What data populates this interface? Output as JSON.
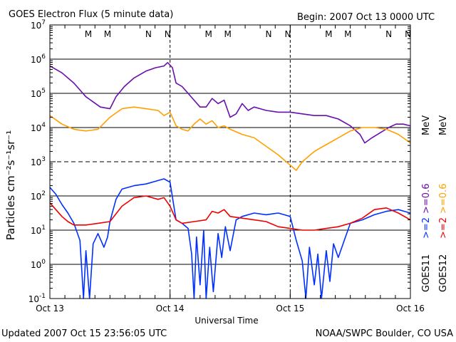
{
  "header": {
    "title": "GOES Electron Flux (5 minute data)",
    "begin": "Begin: 2007 Oct 13 0000 UTC"
  },
  "footer": {
    "updated": "Updated 2007 Oct 15 23:56:05 UTC",
    "credit": "NOAA/SWPC Boulder, CO USA"
  },
  "markers": [
    {
      "label": "M",
      "day": 13.32,
      "color": "#e00000"
    },
    {
      "label": "M",
      "day": 13.48,
      "color": "#0020e0"
    },
    {
      "label": "N",
      "day": 13.82,
      "color": "#e00000"
    },
    {
      "label": "N",
      "day": 13.98,
      "color": "#0020e0"
    },
    {
      "label": "M",
      "day": 14.32,
      "color": "#e00000"
    },
    {
      "label": "M",
      "day": 14.48,
      "color": "#0020e0"
    },
    {
      "label": "N",
      "day": 14.82,
      "color": "#e00000"
    },
    {
      "label": "N",
      "day": 14.98,
      "color": "#0020e0"
    },
    {
      "label": "M",
      "day": 15.32,
      "color": "#e00000"
    },
    {
      "label": "M",
      "day": 15.48,
      "color": "#0020e0"
    },
    {
      "label": "N",
      "day": 15.82,
      "color": "#e00000"
    },
    {
      "label": "N",
      "day": 15.98,
      "color": "#0020e0"
    }
  ],
  "chart_data": {
    "type": "line",
    "xlabel": "Universal Time",
    "ylabel": "Particles cm⁻²s⁻¹sr⁻¹",
    "x_ticks": [
      {
        "day": 13,
        "label": "Oct 13"
      },
      {
        "day": 14,
        "label": "Oct 14"
      },
      {
        "day": 15,
        "label": "Oct 15"
      },
      {
        "day": 16,
        "label": "Oct 16"
      }
    ],
    "xlim": [
      13,
      16
    ],
    "ylim_log10": [
      -1,
      7
    ],
    "y_scale": "log",
    "y_ticks": [
      {
        "exp": 7,
        "base": "10",
        "sup": "7"
      },
      {
        "exp": 6,
        "base": "10",
        "sup": "6"
      },
      {
        "exp": 5,
        "base": "10",
        "sup": "5"
      },
      {
        "exp": 4,
        "base": "10",
        "sup": "4"
      },
      {
        "exp": 3,
        "base": "10",
        "sup": "3"
      },
      {
        "exp": 2,
        "base": "10",
        "sup": "2"
      },
      {
        "exp": 1,
        "base": "10",
        "sup": "1"
      },
      {
        "exp": 0,
        "base": "10",
        "sup": "0"
      },
      {
        "exp": -1,
        "base": "10",
        "sup": "-1"
      }
    ],
    "threshold_line_exp": 3,
    "legend": {
      "goes11": {
        "label": "GOES11",
        "lo": ">=2",
        "hi": ">=0.6",
        "unit": "MeV"
      },
      "goes12": {
        "label": "GOES12",
        "lo": ">=2",
        "hi": ">=0.6",
        "unit": "MeV"
      }
    },
    "series": [
      {
        "name": "GOES11 >=0.6 MeV",
        "color": "#6a0dad",
        "points": [
          [
            13.0,
            5.8
          ],
          [
            13.1,
            5.6
          ],
          [
            13.2,
            5.3
          ],
          [
            13.3,
            4.9
          ],
          [
            13.42,
            4.6
          ],
          [
            13.5,
            4.55
          ],
          [
            13.55,
            4.9
          ],
          [
            13.62,
            5.2
          ],
          [
            13.7,
            5.45
          ],
          [
            13.8,
            5.65
          ],
          [
            13.88,
            5.75
          ],
          [
            13.95,
            5.8
          ],
          [
            13.98,
            5.9
          ],
          [
            14.02,
            5.75
          ],
          [
            14.05,
            5.3
          ],
          [
            14.1,
            5.2
          ],
          [
            14.15,
            5.0
          ],
          [
            14.2,
            4.8
          ],
          [
            14.25,
            4.6
          ],
          [
            14.3,
            4.6
          ],
          [
            14.35,
            4.85
          ],
          [
            14.4,
            4.7
          ],
          [
            14.45,
            4.8
          ],
          [
            14.5,
            4.3
          ],
          [
            14.55,
            4.4
          ],
          [
            14.6,
            4.7
          ],
          [
            14.65,
            4.5
          ],
          [
            14.7,
            4.6
          ],
          [
            14.75,
            4.55
          ],
          [
            14.8,
            4.5
          ],
          [
            14.9,
            4.45
          ],
          [
            15.0,
            4.45
          ],
          [
            15.1,
            4.4
          ],
          [
            15.2,
            4.35
          ],
          [
            15.3,
            4.35
          ],
          [
            15.4,
            4.25
          ],
          [
            15.5,
            4.05
          ],
          [
            15.58,
            3.8
          ],
          [
            15.62,
            3.55
          ],
          [
            15.68,
            3.7
          ],
          [
            15.75,
            3.85
          ],
          [
            15.82,
            4.0
          ],
          [
            15.88,
            4.1
          ],
          [
            15.94,
            4.1
          ],
          [
            16.0,
            4.05
          ]
        ]
      },
      {
        "name": "GOES12 >=0.6 MeV",
        "color": "#ffa000",
        "points": [
          [
            13.0,
            4.35
          ],
          [
            13.1,
            4.1
          ],
          [
            13.2,
            3.95
          ],
          [
            13.3,
            3.9
          ],
          [
            13.4,
            3.95
          ],
          [
            13.5,
            4.3
          ],
          [
            13.6,
            4.55
          ],
          [
            13.7,
            4.6
          ],
          [
            13.8,
            4.55
          ],
          [
            13.9,
            4.5
          ],
          [
            13.95,
            4.35
          ],
          [
            14.0,
            4.45
          ],
          [
            14.05,
            4.05
          ],
          [
            14.1,
            3.95
          ],
          [
            14.15,
            3.9
          ],
          [
            14.2,
            4.1
          ],
          [
            14.25,
            4.25
          ],
          [
            14.3,
            4.1
          ],
          [
            14.35,
            4.2
          ],
          [
            14.4,
            4.0
          ],
          [
            14.45,
            4.05
          ],
          [
            14.5,
            3.95
          ],
          [
            14.6,
            3.8
          ],
          [
            14.7,
            3.7
          ],
          [
            14.8,
            3.45
          ],
          [
            14.9,
            3.2
          ],
          [
            14.95,
            3.05
          ],
          [
            15.0,
            2.9
          ],
          [
            15.05,
            2.75
          ],
          [
            15.1,
            3.0
          ],
          [
            15.2,
            3.3
          ],
          [
            15.3,
            3.5
          ],
          [
            15.4,
            3.7
          ],
          [
            15.5,
            3.9
          ],
          [
            15.6,
            4.0
          ],
          [
            15.7,
            4.0
          ],
          [
            15.8,
            3.95
          ],
          [
            15.9,
            3.8
          ],
          [
            16.0,
            3.55
          ]
        ]
      },
      {
        "name": "GOES11 >=2 MeV",
        "color": "#0030ff",
        "points": [
          [
            13.0,
            2.25
          ],
          [
            13.05,
            2.05
          ],
          [
            13.1,
            1.75
          ],
          [
            13.15,
            1.5
          ],
          [
            13.2,
            1.2
          ],
          [
            13.25,
            0.7
          ],
          [
            13.28,
            -1.0
          ],
          [
            13.3,
            0.4
          ],
          [
            13.33,
            -1.0
          ],
          [
            13.36,
            0.6
          ],
          [
            13.4,
            0.9
          ],
          [
            13.45,
            0.5
          ],
          [
            13.48,
            0.8
          ],
          [
            13.5,
            1.25
          ],
          [
            13.55,
            1.9
          ],
          [
            13.6,
            2.2
          ],
          [
            13.7,
            2.3
          ],
          [
            13.8,
            2.35
          ],
          [
            13.9,
            2.45
          ],
          [
            13.95,
            2.5
          ],
          [
            14.0,
            2.4
          ],
          [
            14.05,
            1.3
          ],
          [
            14.1,
            1.2
          ],
          [
            14.15,
            1.05
          ],
          [
            14.18,
            0.3
          ],
          [
            14.2,
            -1.0
          ],
          [
            14.22,
            0.8
          ],
          [
            14.25,
            -0.6
          ],
          [
            14.28,
            1.0
          ],
          [
            14.3,
            -1.0
          ],
          [
            14.33,
            0.5
          ],
          [
            14.36,
            -0.8
          ],
          [
            14.4,
            0.9
          ],
          [
            14.43,
            0.2
          ],
          [
            14.46,
            1.1
          ],
          [
            14.5,
            0.4
          ],
          [
            14.55,
            1.3
          ],
          [
            14.6,
            1.4
          ],
          [
            14.7,
            1.5
          ],
          [
            14.8,
            1.45
          ],
          [
            14.9,
            1.5
          ],
          [
            14.95,
            1.45
          ],
          [
            15.0,
            1.4
          ],
          [
            15.05,
            0.7
          ],
          [
            15.1,
            0.1
          ],
          [
            15.13,
            -1.0
          ],
          [
            15.16,
            0.5
          ],
          [
            15.2,
            -0.6
          ],
          [
            15.23,
            0.3
          ],
          [
            15.26,
            -1.0
          ],
          [
            15.3,
            0.4
          ],
          [
            15.33,
            -0.5
          ],
          [
            15.36,
            0.6
          ],
          [
            15.4,
            0.2
          ],
          [
            15.45,
            0.7
          ],
          [
            15.5,
            1.2
          ],
          [
            15.6,
            1.3
          ],
          [
            15.7,
            1.45
          ],
          [
            15.8,
            1.55
          ],
          [
            15.9,
            1.6
          ],
          [
            15.95,
            1.55
          ],
          [
            16.0,
            1.5
          ]
        ]
      },
      {
        "name": "GOES12 >=2 MeV",
        "color": "#ee0000",
        "points": [
          [
            13.0,
            1.8
          ],
          [
            13.05,
            1.6
          ],
          [
            13.1,
            1.4
          ],
          [
            13.15,
            1.25
          ],
          [
            13.2,
            1.15
          ],
          [
            13.3,
            1.15
          ],
          [
            13.4,
            1.2
          ],
          [
            13.5,
            1.25
          ],
          [
            13.6,
            1.7
          ],
          [
            13.7,
            1.95
          ],
          [
            13.8,
            2.0
          ],
          [
            13.9,
            1.9
          ],
          [
            13.95,
            1.95
          ],
          [
            14.0,
            1.7
          ],
          [
            14.05,
            1.3
          ],
          [
            14.1,
            1.2
          ],
          [
            14.2,
            1.25
          ],
          [
            14.3,
            1.3
          ],
          [
            14.35,
            1.55
          ],
          [
            14.4,
            1.5
          ],
          [
            14.45,
            1.6
          ],
          [
            14.5,
            1.4
          ],
          [
            14.6,
            1.35
          ],
          [
            14.7,
            1.3
          ],
          [
            14.8,
            1.25
          ],
          [
            14.9,
            1.1
          ],
          [
            15.0,
            1.05
          ],
          [
            15.1,
            1.0
          ],
          [
            15.2,
            1.0
          ],
          [
            15.3,
            1.05
          ],
          [
            15.4,
            1.1
          ],
          [
            15.5,
            1.2
          ],
          [
            15.6,
            1.35
          ],
          [
            15.7,
            1.6
          ],
          [
            15.8,
            1.65
          ],
          [
            15.9,
            1.5
          ],
          [
            16.0,
            1.3
          ]
        ]
      }
    ]
  }
}
